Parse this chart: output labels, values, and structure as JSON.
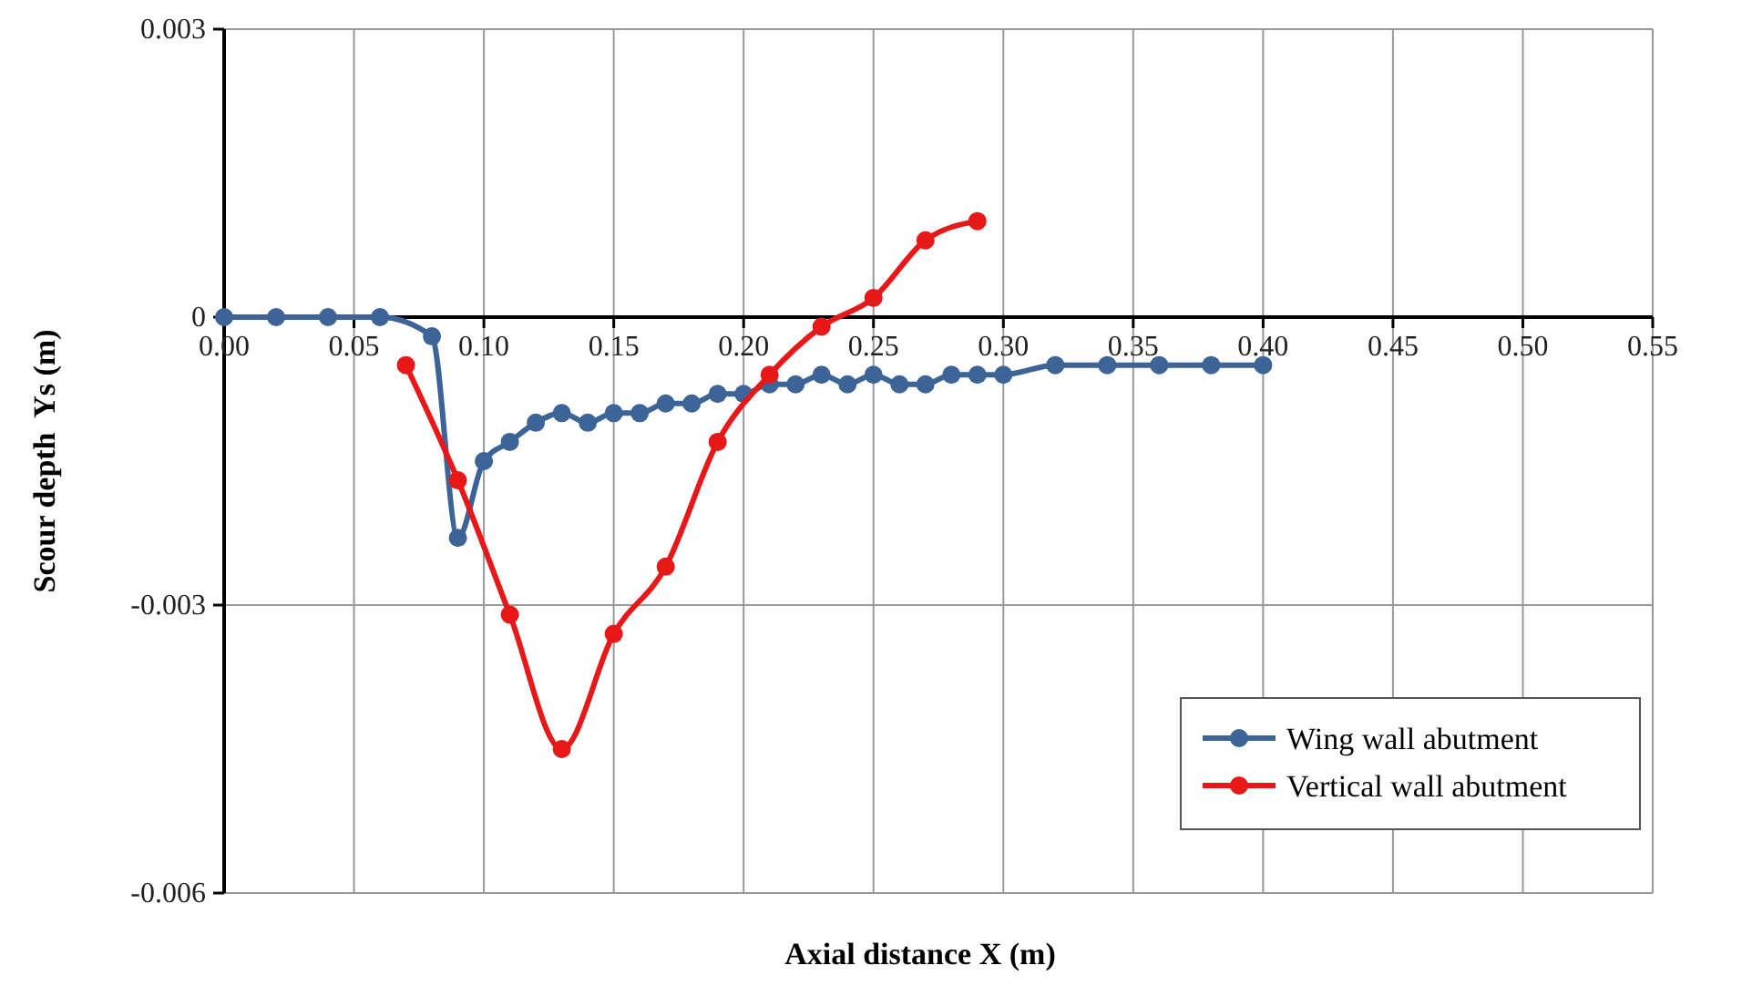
{
  "chart_data": {
    "type": "line",
    "xlabel": "Axial distance X (m)",
    "ylabel": "Scour depth  Ys (m)",
    "xlim": [
      0,
      0.55
    ],
    "xticks": [
      {
        "value": 0,
        "label": "0.00"
      },
      {
        "value": 0.05,
        "label": "0.05"
      },
      {
        "value": 0.1,
        "label": "0.10"
      },
      {
        "value": 0.15,
        "label": "0.15"
      },
      {
        "value": 0.2,
        "label": "0.20"
      },
      {
        "value": 0.25,
        "label": "0.25"
      },
      {
        "value": 0.3,
        "label": "0.30"
      },
      {
        "value": 0.35,
        "label": "0.35"
      },
      {
        "value": 0.4,
        "label": "0.40"
      },
      {
        "value": 0.45,
        "label": "0.45"
      },
      {
        "value": 0.5,
        "label": "0.50"
      },
      {
        "value": 0.55,
        "label": "0.55"
      }
    ],
    "ylim": [
      -0.006,
      0.003
    ],
    "yticks": [
      -0.006,
      -0.003,
      0,
      0.003
    ],
    "grid": true,
    "legend": "bottom right",
    "marker": "circle",
    "line_style": "solid",
    "series": [
      {
        "name": "Wing wall abutment",
        "color": "#3c6496",
        "x": [
          0,
          0.02,
          0.04,
          0.06,
          0.08,
          0.09,
          0.1,
          0.11,
          0.12,
          0.13,
          0.14,
          0.15,
          0.16,
          0.17,
          0.18,
          0.19,
          0.2,
          0.21,
          0.22,
          0.23,
          0.24,
          0.25,
          0.26,
          0.27,
          0.28,
          0.29,
          0.3,
          0.32,
          0.34,
          0.36,
          0.38,
          0.4
        ],
        "values": [
          0,
          0,
          0,
          0,
          -0.0002,
          -0.0023,
          -0.0015,
          -0.0013,
          -0.0011,
          -0.001,
          -0.0011,
          -0.001,
          -0.001,
          -0.0009,
          -0.0009,
          -0.0008,
          -0.0008,
          -0.0007,
          -0.0007,
          -0.0006,
          -0.0007,
          -0.0006,
          -0.0007,
          -0.0007,
          -0.0006,
          -0.0006,
          -0.0006,
          -0.0005,
          -0.0005,
          -0.0005,
          -0.0005,
          -0.0005
        ]
      },
      {
        "name": "Vertical wall abutment",
        "color": "#e81818",
        "x": [
          0.07,
          0.09,
          0.11,
          0.13,
          0.15,
          0.17,
          0.19,
          0.21,
          0.23,
          0.25,
          0.27,
          0.29
        ],
        "values": [
          -0.0005,
          -0.0017,
          -0.0031,
          -0.0045,
          -0.0033,
          -0.0026,
          -0.0013,
          -0.0006,
          -0.0001,
          0.0002,
          0.0008,
          0.001
        ]
      }
    ]
  }
}
